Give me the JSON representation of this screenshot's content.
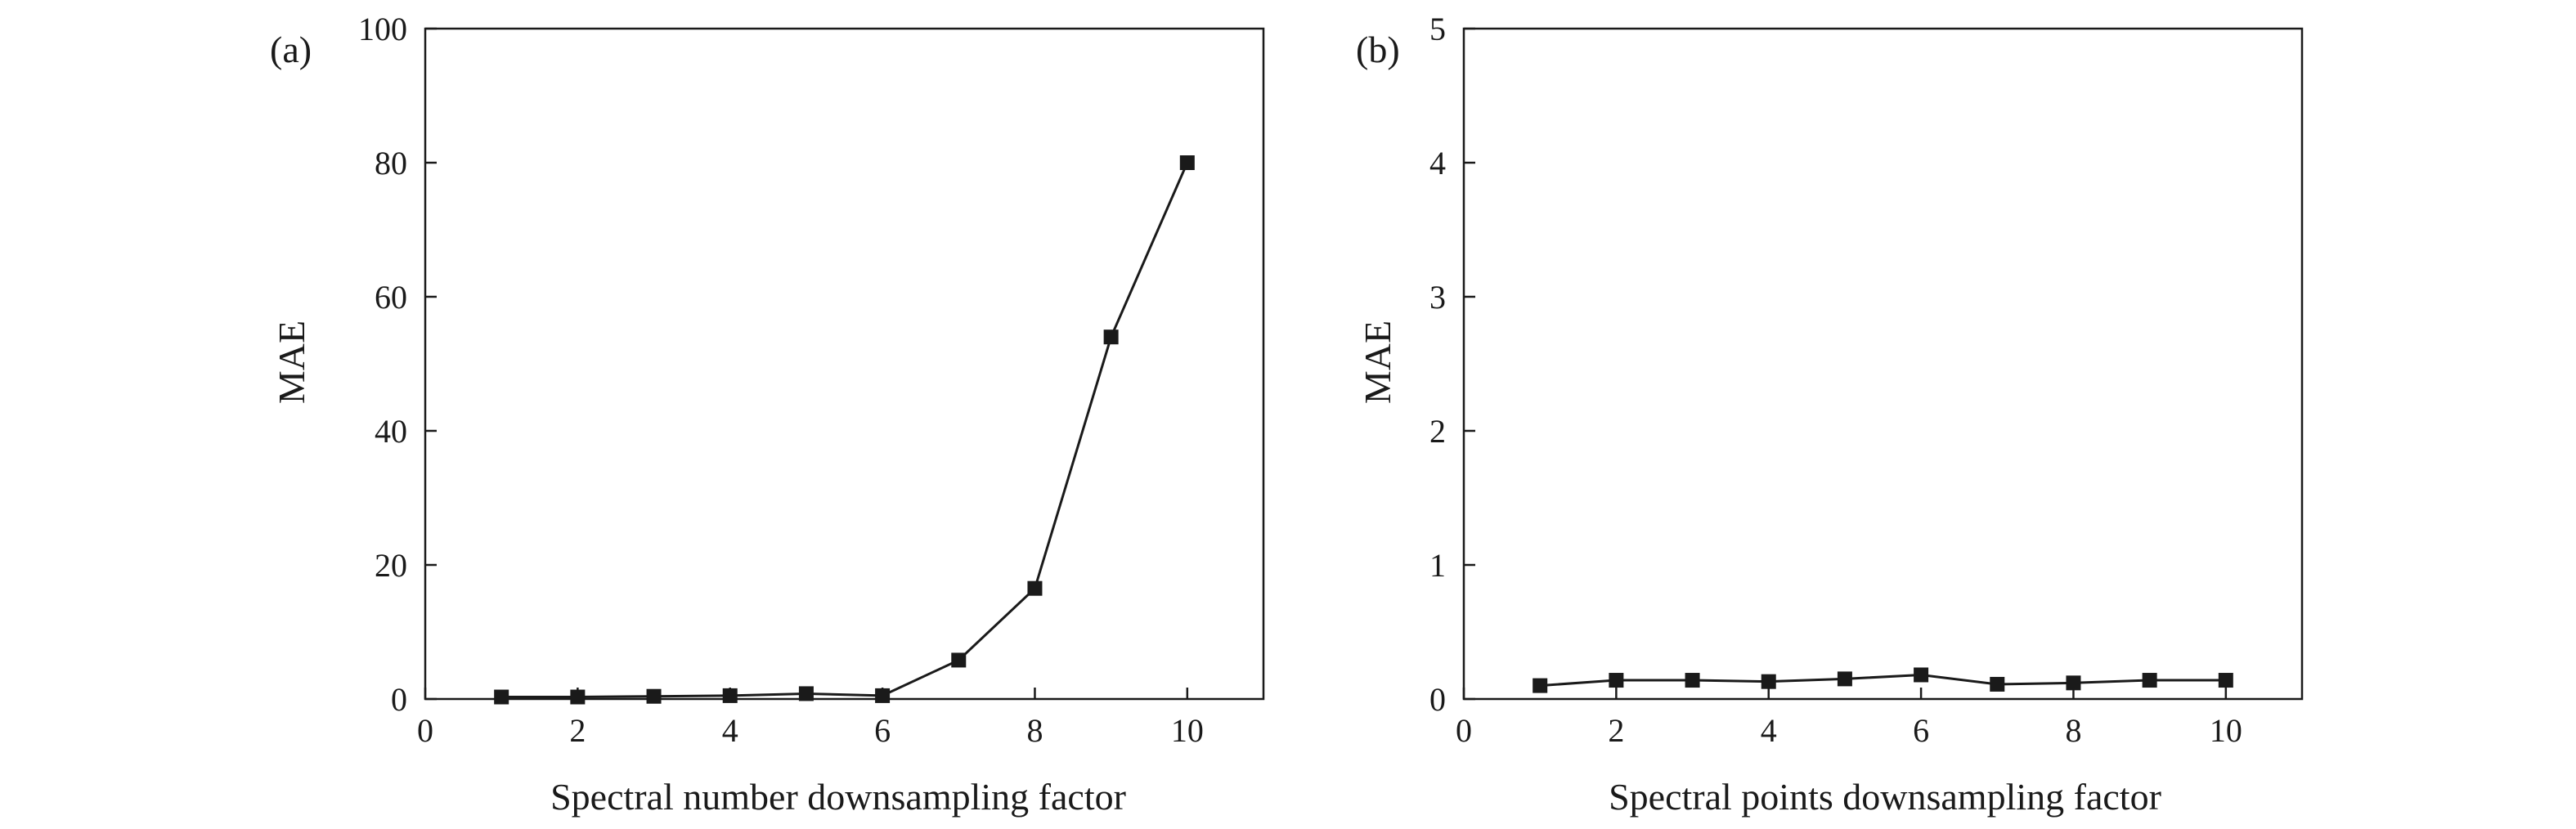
{
  "chart_data": [
    {
      "type": "line",
      "panel_label": "(a)",
      "title": "",
      "xlabel": "Spectral number downsampling factor",
      "ylabel": "MAE",
      "xlim": [
        0,
        11
      ],
      "ylim": [
        0,
        100
      ],
      "xticks": [
        0,
        2,
        4,
        6,
        8,
        10
      ],
      "yticks": [
        0,
        20,
        40,
        60,
        80,
        100
      ],
      "grid": false,
      "marker": "square",
      "color": "#1a1a1a",
      "series": [
        {
          "x": [
            1,
            2,
            3,
            4,
            5,
            6,
            7,
            8,
            9,
            10
          ],
          "y": [
            0.3,
            0.3,
            0.4,
            0.5,
            0.8,
            0.5,
            5.8,
            16.5,
            54.0,
            80.0
          ]
        }
      ]
    },
    {
      "type": "line",
      "panel_label": "(b)",
      "title": "",
      "xlabel": "Spectral points downsampling factor",
      "ylabel": "MAE",
      "xlim": [
        0,
        11
      ],
      "ylim": [
        0,
        5
      ],
      "xticks": [
        0,
        2,
        4,
        6,
        8,
        10
      ],
      "yticks": [
        0,
        1,
        2,
        3,
        4,
        5
      ],
      "grid": false,
      "marker": "square",
      "color": "#1a1a1a",
      "series": [
        {
          "x": [
            1,
            2,
            3,
            4,
            5,
            6,
            7,
            8,
            9,
            10
          ],
          "y": [
            0.1,
            0.14,
            0.14,
            0.13,
            0.15,
            0.18,
            0.11,
            0.12,
            0.14,
            0.14
          ]
        }
      ]
    }
  ]
}
